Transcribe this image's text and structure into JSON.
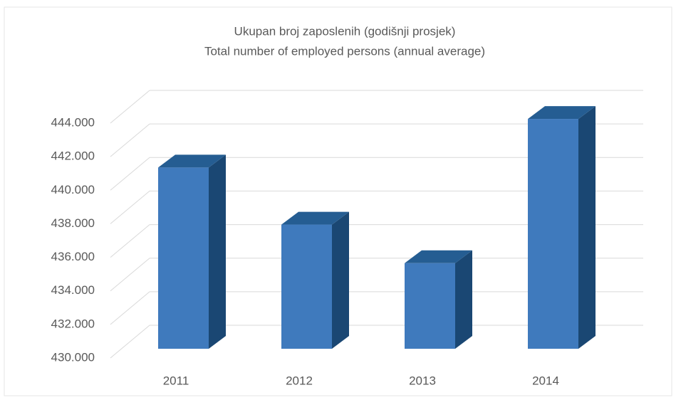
{
  "chart_data": {
    "type": "bar3d",
    "title": "Ukupan broj zaposlenih (godišnji prosjek)",
    "subtitle": "Total number of employed persons (annual average)",
    "categories": [
      "2011",
      "2012",
      "2013",
      "2014"
    ],
    "values": [
      440800,
      437400,
      435100,
      443700
    ],
    "color": "#3f7abd",
    "ylim": [
      430000,
      444000
    ],
    "yticks": [
      {
        "value": 430000,
        "label": "430.000"
      },
      {
        "value": 432000,
        "label": "432.000"
      },
      {
        "value": 434000,
        "label": "434.000"
      },
      {
        "value": 436000,
        "label": "436.000"
      },
      {
        "value": 438000,
        "label": "438.000"
      },
      {
        "value": 440000,
        "label": "440.000"
      },
      {
        "value": 442000,
        "label": "442.000"
      },
      {
        "value": 444000,
        "label": "444.000"
      }
    ],
    "grid": true
  }
}
